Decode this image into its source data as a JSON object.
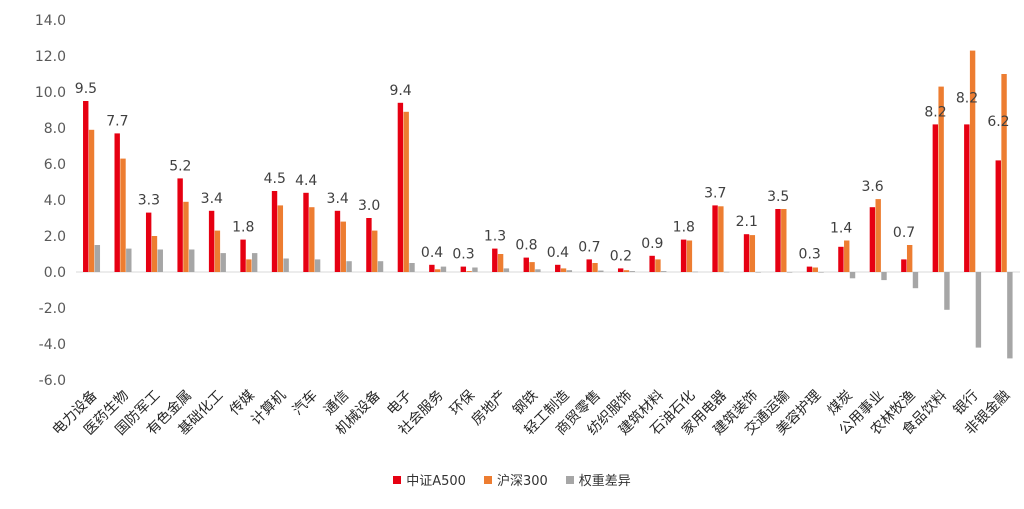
{
  "chart_data": {
    "type": "bar",
    "categories": [
      "电力设备",
      "医药生物",
      "国防军工",
      "有色金属",
      "基础化工",
      "传媒",
      "计算机",
      "汽车",
      "通信",
      "机械设备",
      "电子",
      "社会服务",
      "环保",
      "房地产",
      "钢铁",
      "轻工制造",
      "商贸零售",
      "纺织服饰",
      "建筑材料",
      "石油石化",
      "家用电器",
      "建筑装饰",
      "交通运输",
      "美容护理",
      "煤炭",
      "公用事业",
      "农林牧渔",
      "食品饮料",
      "银行",
      "非银金融"
    ],
    "series": [
      {
        "name": "中证A500",
        "color": "#e60012",
        "values": [
          9.5,
          7.7,
          3.3,
          5.2,
          3.4,
          1.8,
          4.5,
          4.4,
          3.4,
          3.0,
          9.4,
          0.4,
          0.3,
          1.3,
          0.8,
          0.4,
          0.7,
          0.2,
          0.9,
          1.8,
          3.7,
          2.1,
          3.5,
          0.3,
          1.4,
          3.6,
          0.7,
          8.2,
          8.2,
          6.2
        ]
      },
      {
        "name": "沪深300",
        "color": "#ed7d31",
        "values": [
          7.9,
          6.3,
          2.0,
          3.9,
          2.3,
          0.7,
          3.7,
          3.6,
          2.8,
          2.3,
          8.9,
          0.15,
          0.05,
          1.0,
          0.55,
          0.2,
          0.5,
          0.1,
          0.7,
          1.75,
          3.65,
          2.05,
          3.5,
          0.25,
          1.75,
          4.05,
          1.5,
          10.3,
          12.3,
          11.0
        ]
      },
      {
        "name": "权重差异",
        "color": "#a6a6a6",
        "values": [
          1.5,
          1.3,
          1.25,
          1.25,
          1.05,
          1.05,
          0.75,
          0.7,
          0.6,
          0.6,
          0.5,
          0.3,
          0.25,
          0.2,
          0.15,
          0.1,
          0.08,
          0.05,
          0.05,
          0.02,
          0.01,
          0.0,
          0.0,
          0.0,
          -0.35,
          -0.45,
          -0.9,
          -2.1,
          -4.2,
          -4.8
        ]
      }
    ],
    "data_labels": [
      "9.5",
      "7.7",
      "3.3",
      "5.2",
      "3.4",
      "1.8",
      "4.5",
      "4.4",
      "3.4",
      "3.0",
      "9.4",
      "0.4",
      "0.3",
      "1.3",
      "0.8",
      "0.4",
      "0.7",
      "0.2",
      "0.9",
      "1.8",
      "3.7",
      "2.1",
      "3.5",
      "0.3",
      "1.4",
      "3.6",
      "0.7",
      "8.2",
      "8.2",
      "6.2"
    ],
    "y_ticks": [
      "14.0",
      "12.0",
      "10.0",
      "8.0",
      "6.0",
      "4.0",
      "2.0",
      "0.0",
      "-2.0",
      "-4.0",
      "-6.0"
    ],
    "ylim": [
      -6,
      14
    ],
    "grid": false,
    "legend_position": "bottom-center"
  }
}
